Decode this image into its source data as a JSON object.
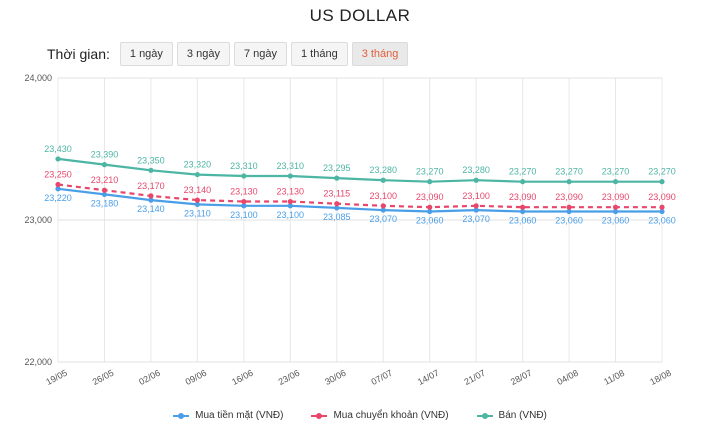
{
  "title": "US DOLLAR",
  "filter": {
    "label": "Thời gian:",
    "options": [
      "1 ngày",
      "3 ngày",
      "7 ngày",
      "1 tháng",
      "3 tháng"
    ],
    "active_index": 4
  },
  "chart_data": {
    "type": "line",
    "categories": [
      "19/05",
      "26/05",
      "02/06",
      "09/06",
      "16/06",
      "23/06",
      "30/06",
      "07/07",
      "14/07",
      "21/07",
      "28/07",
      "04/08",
      "11/08",
      "18/08"
    ],
    "ylim": [
      22000,
      24000
    ],
    "yticks": [
      "22,000",
      "23,000",
      "24,000"
    ],
    "grid": true,
    "legend": "bottom",
    "series": [
      {
        "name": "Mua tiền mặt (VNĐ)",
        "color": "#4a9ee8",
        "dashed": false,
        "values": [
          23220,
          23180,
          23140,
          23110,
          23100,
          23100,
          23085,
          23070,
          23060,
          23070,
          23060,
          23060,
          23060,
          23060
        ],
        "labels": [
          "23,220",
          "23,180",
          "23,140",
          "23,110",
          "23,100",
          "23,100",
          "23,085",
          "23,070",
          "23,060",
          "23,070",
          "23,060",
          "23,060",
          "23,060",
          "23,060"
        ]
      },
      {
        "name": "Mua chuyển khoản (VNĐ)",
        "color": "#e8476b",
        "dashed": true,
        "values": [
          23250,
          23210,
          23170,
          23140,
          23130,
          23130,
          23115,
          23100,
          23090,
          23100,
          23090,
          23090,
          23090,
          23090
        ],
        "labels": [
          "23,250",
          "23,210",
          "23,170",
          "23,140",
          "23,130",
          "23,130",
          "23,115",
          "23,100",
          "23,090",
          "23,100",
          "23,090",
          "23,090",
          "23,090",
          "23,090"
        ]
      },
      {
        "name": "Bán (VNĐ)",
        "color": "#4cb5a4",
        "dashed": false,
        "values": [
          23430,
          23390,
          23350,
          23320,
          23310,
          23310,
          23295,
          23280,
          23270,
          23280,
          23270,
          23270,
          23270,
          23270
        ],
        "labels": [
          "23,430",
          "23,390",
          "23,350",
          "23,320",
          "23,310",
          "23,310",
          "23,295",
          "23,280",
          "23,270",
          "23,280",
          "23,270",
          "23,270",
          "23,270",
          "23,270"
        ]
      }
    ]
  }
}
